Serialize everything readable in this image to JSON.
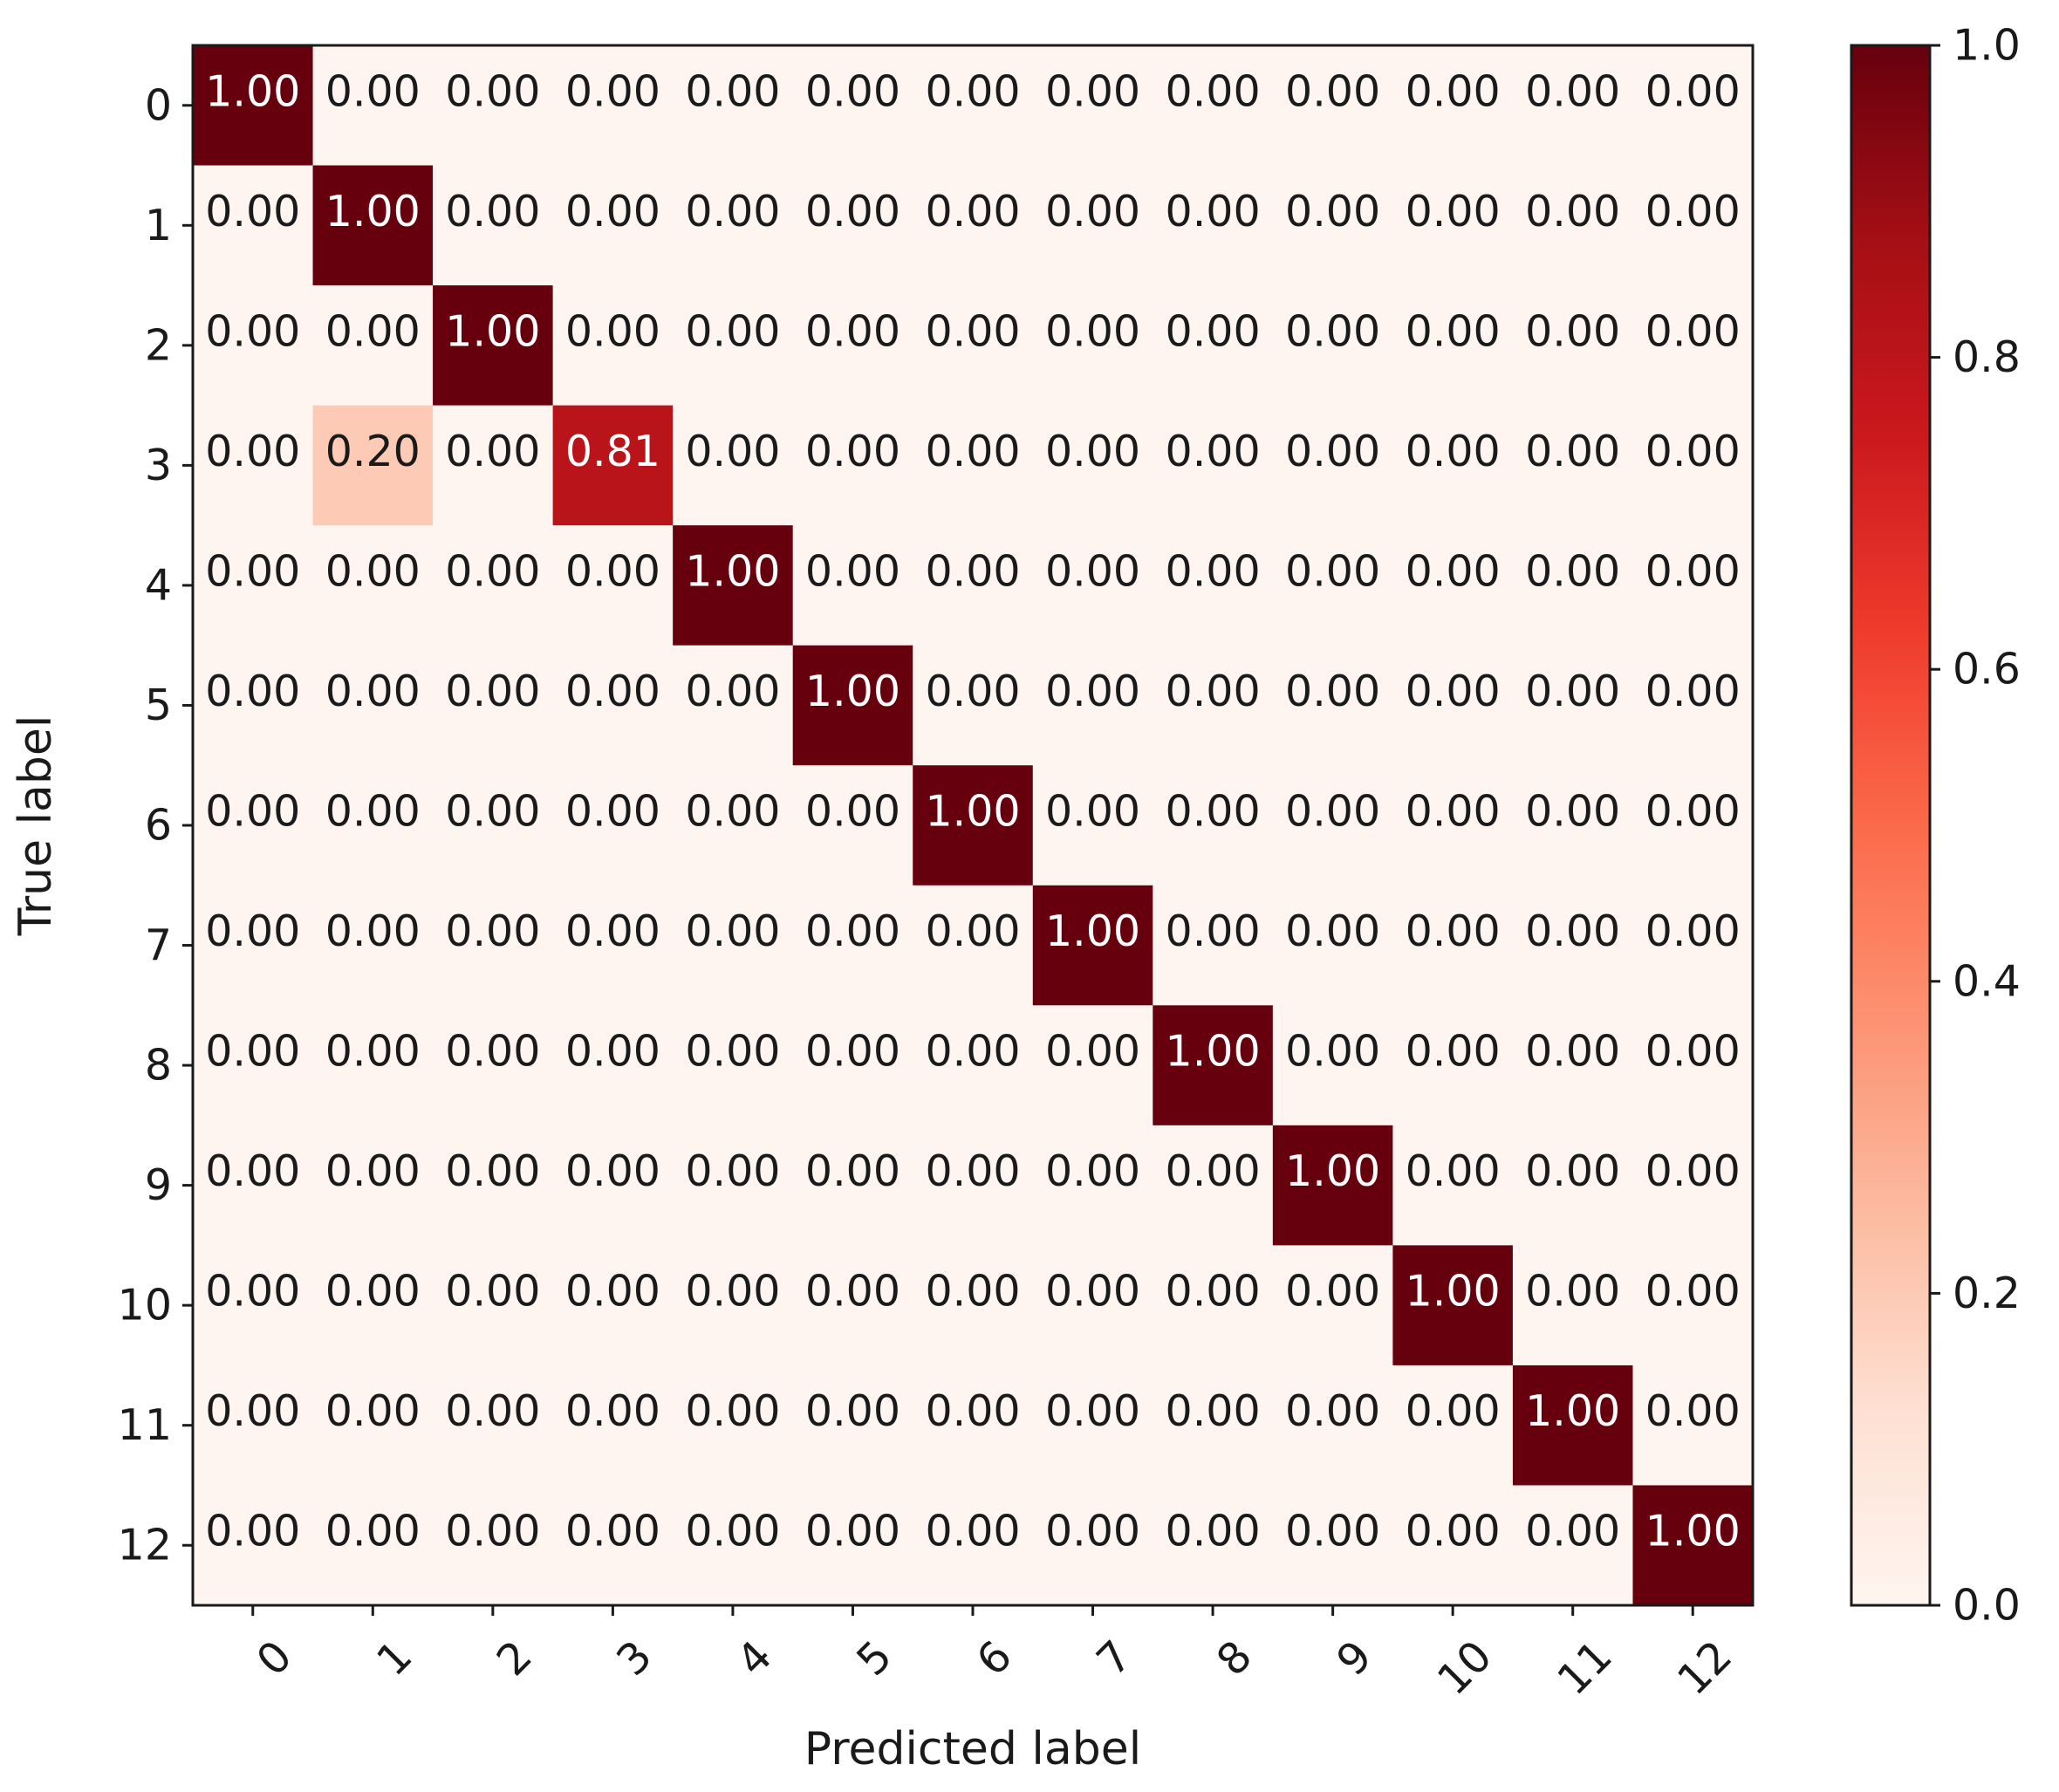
{
  "chart_data": {
    "type": "heatmap",
    "title": "",
    "xlabel": "Predicted label",
    "ylabel": "True label",
    "x_categories": [
      "0",
      "1",
      "2",
      "3",
      "4",
      "5",
      "6",
      "7",
      "8",
      "9",
      "10",
      "11",
      "12"
    ],
    "y_categories": [
      "0",
      "1",
      "2",
      "3",
      "4",
      "5",
      "6",
      "7",
      "8",
      "9",
      "10",
      "11",
      "12"
    ],
    "matrix": [
      [
        1.0,
        0.0,
        0.0,
        0.0,
        0.0,
        0.0,
        0.0,
        0.0,
        0.0,
        0.0,
        0.0,
        0.0,
        0.0
      ],
      [
        0.0,
        1.0,
        0.0,
        0.0,
        0.0,
        0.0,
        0.0,
        0.0,
        0.0,
        0.0,
        0.0,
        0.0,
        0.0
      ],
      [
        0.0,
        0.0,
        1.0,
        0.0,
        0.0,
        0.0,
        0.0,
        0.0,
        0.0,
        0.0,
        0.0,
        0.0,
        0.0
      ],
      [
        0.0,
        0.2,
        0.0,
        0.81,
        0.0,
        0.0,
        0.0,
        0.0,
        0.0,
        0.0,
        0.0,
        0.0,
        0.0
      ],
      [
        0.0,
        0.0,
        0.0,
        0.0,
        1.0,
        0.0,
        0.0,
        0.0,
        0.0,
        0.0,
        0.0,
        0.0,
        0.0
      ],
      [
        0.0,
        0.0,
        0.0,
        0.0,
        0.0,
        1.0,
        0.0,
        0.0,
        0.0,
        0.0,
        0.0,
        0.0,
        0.0
      ],
      [
        0.0,
        0.0,
        0.0,
        0.0,
        0.0,
        0.0,
        1.0,
        0.0,
        0.0,
        0.0,
        0.0,
        0.0,
        0.0
      ],
      [
        0.0,
        0.0,
        0.0,
        0.0,
        0.0,
        0.0,
        0.0,
        1.0,
        0.0,
        0.0,
        0.0,
        0.0,
        0.0
      ],
      [
        0.0,
        0.0,
        0.0,
        0.0,
        0.0,
        0.0,
        0.0,
        0.0,
        1.0,
        0.0,
        0.0,
        0.0,
        0.0
      ],
      [
        0.0,
        0.0,
        0.0,
        0.0,
        0.0,
        0.0,
        0.0,
        0.0,
        0.0,
        1.0,
        0.0,
        0.0,
        0.0
      ],
      [
        0.0,
        0.0,
        0.0,
        0.0,
        0.0,
        0.0,
        0.0,
        0.0,
        0.0,
        0.0,
        1.0,
        0.0,
        0.0
      ],
      [
        0.0,
        0.0,
        0.0,
        0.0,
        0.0,
        0.0,
        0.0,
        0.0,
        0.0,
        0.0,
        0.0,
        1.0,
        0.0
      ],
      [
        0.0,
        0.0,
        0.0,
        0.0,
        0.0,
        0.0,
        0.0,
        0.0,
        0.0,
        0.0,
        0.0,
        0.0,
        1.0
      ]
    ],
    "value_format_decimals": 2,
    "colormap": "Reds",
    "colorbar": {
      "range": [
        0.0,
        1.0
      ],
      "ticks": [
        0.0,
        0.2,
        0.4,
        0.6,
        0.8,
        1.0
      ],
      "tick_labels": [
        "0.0",
        "0.2",
        "0.4",
        "0.6",
        "0.8",
        "1.0"
      ]
    },
    "x_tick_rotation": "45deg",
    "colors": {
      "low": "#fff5f0",
      "high": "#67000d",
      "text_dark": "#1a1a1a",
      "text_light": "#ffffff"
    }
  }
}
